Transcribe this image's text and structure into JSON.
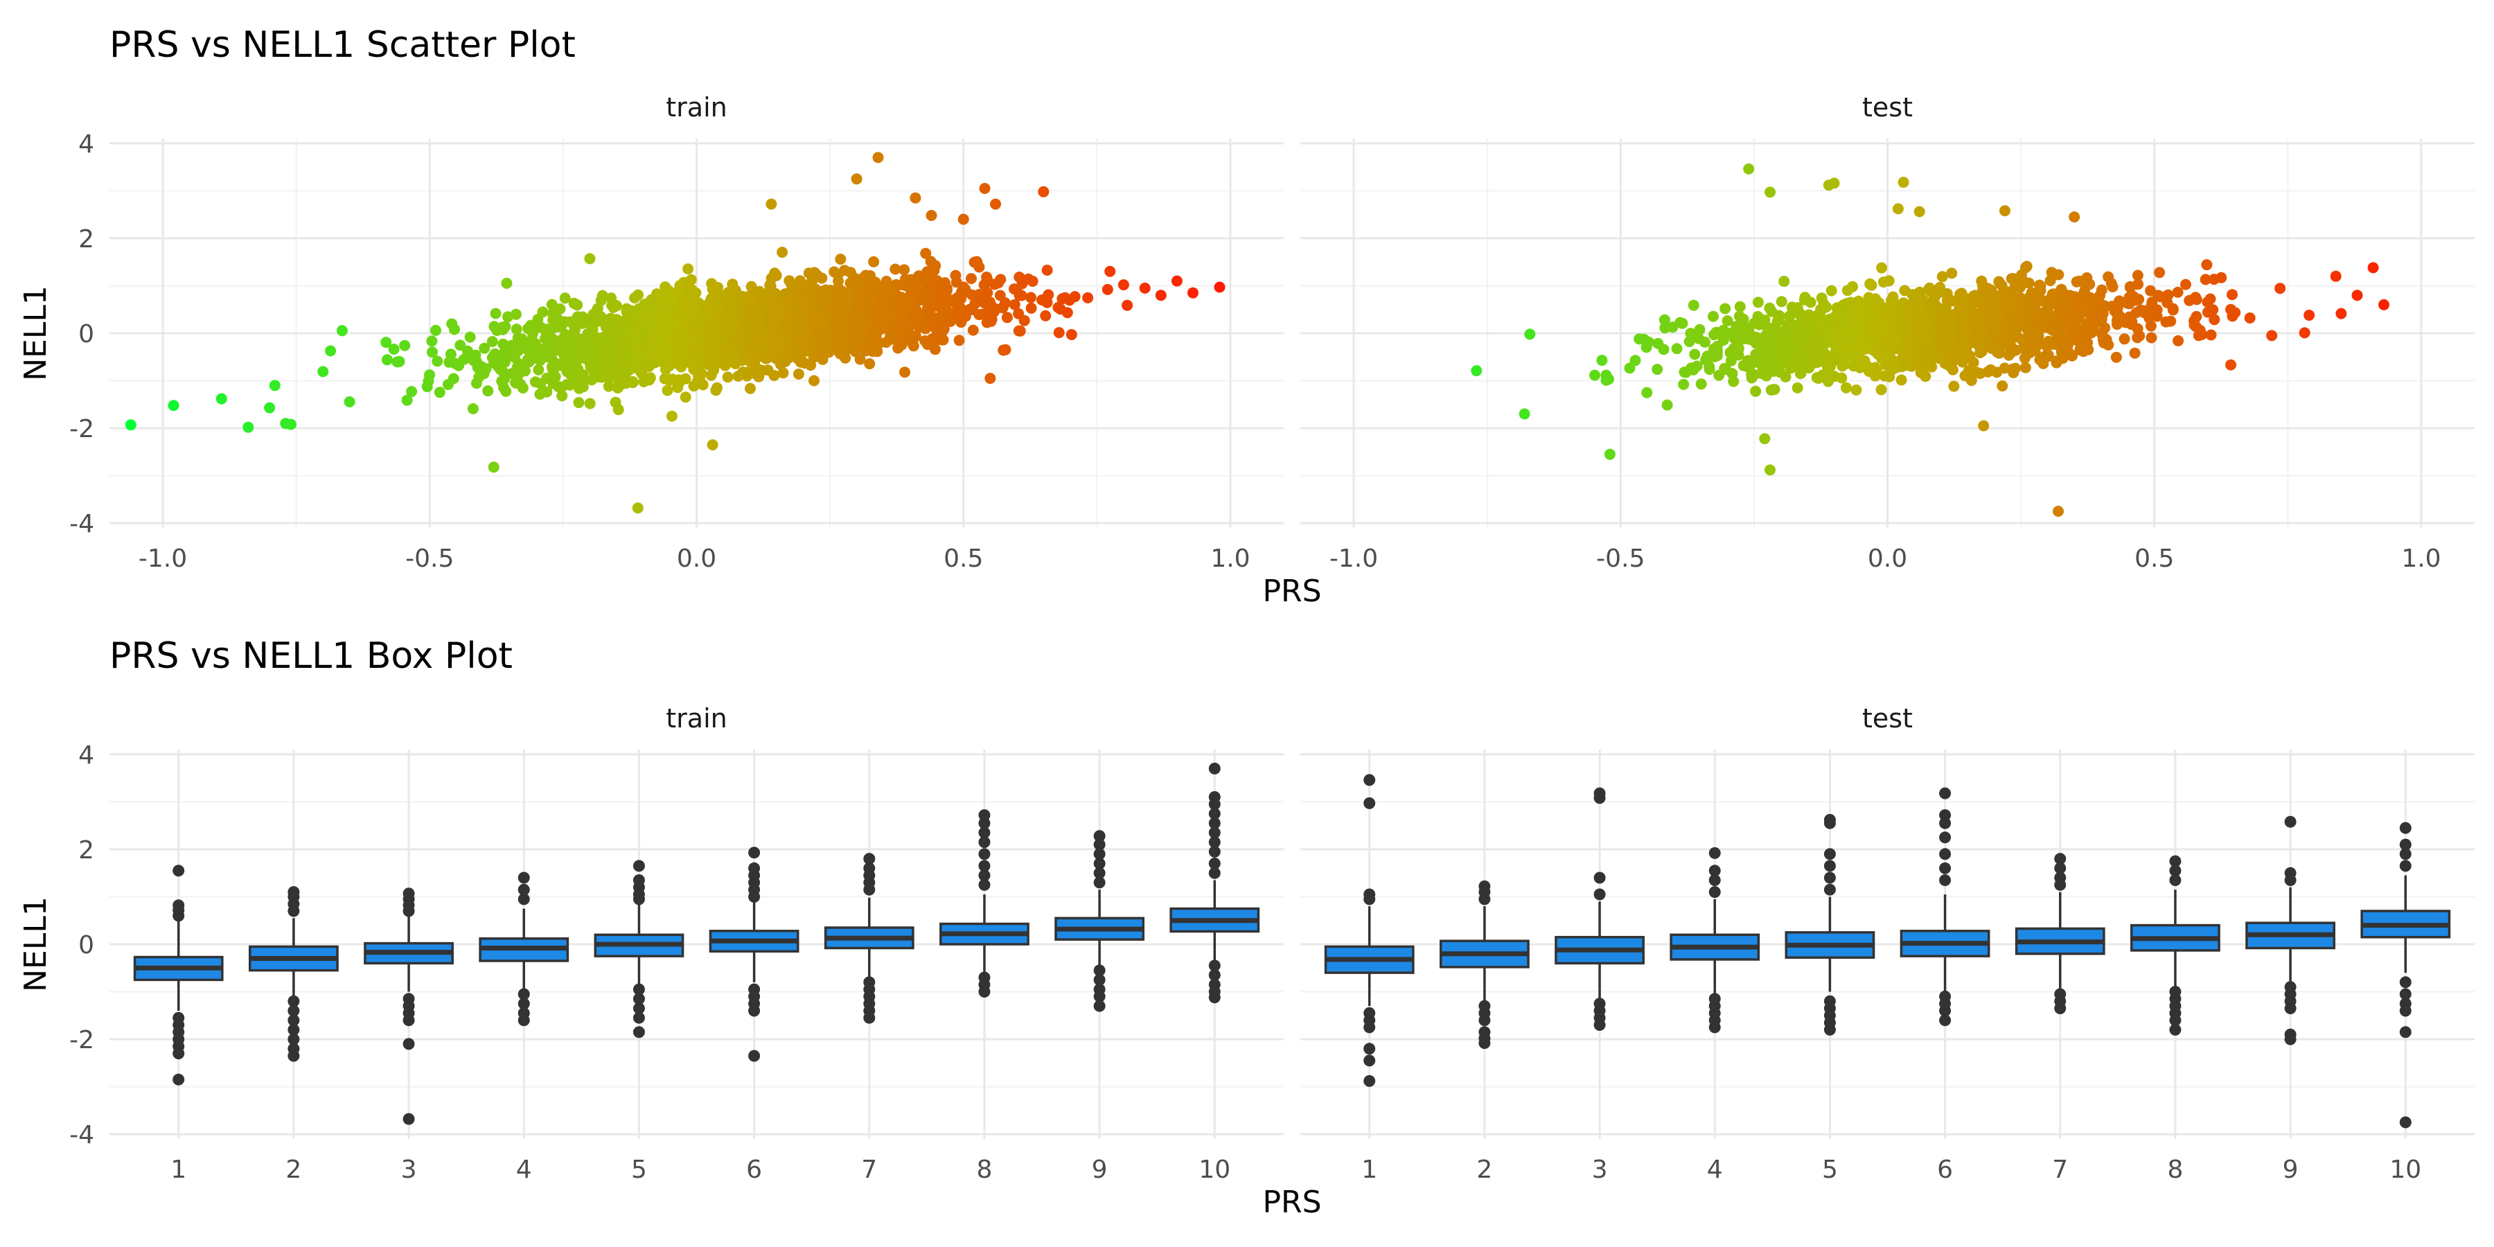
{
  "chart_data": [
    {
      "type": "scatter",
      "title": "PRS vs NELL1 Scatter Plot",
      "xlabel": "PRS",
      "ylabel": "NELL1",
      "xlim": [
        -1.1,
        1.1
      ],
      "ylim": [
        -4.1,
        4.1
      ],
      "x_ticks": [
        -1.0,
        -0.5,
        0.0,
        0.5,
        1.0
      ],
      "x_tick_labels": [
        "-1.0",
        "-0.5",
        "0.0",
        "0.5",
        "1.0"
      ],
      "y_ticks": [
        -4,
        -2,
        0,
        2,
        4
      ],
      "y_tick_labels": [
        "-4",
        "-2",
        "0",
        "2",
        "4"
      ],
      "grid": true,
      "color_scale": {
        "low": "#00ff33",
        "mid": "#b8b800",
        "high": "#ff1a00",
        "range": [
          -1.06,
          0.98
        ]
      },
      "bulk_relation": {
        "slope": 1.25,
        "sd_near_zero": 0.42
      },
      "panels": [
        {
          "name": "train",
          "x_range": [
            -0.7,
            0.9
          ],
          "outliers": [
            {
              "x": -1.06,
              "y": -1.93
            },
            {
              "x": -0.98,
              "y": -1.52
            },
            {
              "x": -0.89,
              "y": -1.38
            },
            {
              "x": -0.84,
              "y": -1.98
            },
            {
              "x": -0.8,
              "y": -1.57
            },
            {
              "x": -0.79,
              "y": -1.1
            },
            {
              "x": -0.77,
              "y": -1.9
            },
            {
              "x": -0.76,
              "y": -1.92
            },
            {
              "x": -0.38,
              "y": -2.82
            },
            {
              "x": -0.11,
              "y": -3.68
            },
            {
              "x": 0.03,
              "y": -2.35
            },
            {
              "x": -0.2,
              "y": 1.57
            },
            {
              "x": 0.34,
              "y": 3.7
            },
            {
              "x": 0.3,
              "y": 3.25
            },
            {
              "x": 0.41,
              "y": 2.85
            },
            {
              "x": 0.54,
              "y": 3.05
            },
            {
              "x": 0.65,
              "y": 2.98
            },
            {
              "x": 0.14,
              "y": 2.72
            },
            {
              "x": 0.5,
              "y": 2.4
            },
            {
              "x": 0.56,
              "y": 2.72
            },
            {
              "x": 0.44,
              "y": 2.48
            },
            {
              "x": 0.98,
              "y": 0.97
            },
            {
              "x": 0.93,
              "y": 0.85
            },
            {
              "x": 0.9,
              "y": 1.1
            },
            {
              "x": 0.87,
              "y": 0.8
            },
            {
              "x": 0.84,
              "y": 0.95
            },
            {
              "x": 0.8,
              "y": 1.02
            },
            {
              "x": 0.77,
              "y": 0.92
            },
            {
              "x": 0.55,
              "y": -0.95
            },
            {
              "x": 0.39,
              "y": -0.82
            }
          ]
        },
        {
          "name": "test",
          "x_range": [
            -0.6,
            0.85
          ],
          "outliers": [
            {
              "x": -0.77,
              "y": -0.79
            },
            {
              "x": -0.68,
              "y": -1.7
            },
            {
              "x": -0.67,
              "y": -0.02
            },
            {
              "x": -0.52,
              "y": -2.55
            },
            {
              "x": -0.26,
              "y": 3.46
            },
            {
              "x": -0.22,
              "y": 2.97
            },
            {
              "x": -0.11,
              "y": 3.12
            },
            {
              "x": -0.1,
              "y": 3.16
            },
            {
              "x": 0.03,
              "y": 3.18
            },
            {
              "x": 0.02,
              "y": 2.62
            },
            {
              "x": 0.06,
              "y": 2.56
            },
            {
              "x": 0.22,
              "y": 2.58
            },
            {
              "x": 0.35,
              "y": 2.45
            },
            {
              "x": -0.22,
              "y": -2.88
            },
            {
              "x": -0.23,
              "y": -2.22
            },
            {
              "x": 0.32,
              "y": -3.75
            },
            {
              "x": 0.18,
              "y": -1.95
            },
            {
              "x": 0.93,
              "y": 0.6
            },
            {
              "x": 0.91,
              "y": 1.38
            },
            {
              "x": 0.88,
              "y": 0.8
            },
            {
              "x": 0.84,
              "y": 1.2
            },
            {
              "x": 0.79,
              "y": 0.38
            },
            {
              "x": 0.72,
              "y": -0.05
            }
          ]
        }
      ]
    },
    {
      "type": "box",
      "title": "PRS vs NELL1 Box Plot",
      "xlabel": "PRS",
      "ylabel": "NELL1",
      "categories": [
        "1",
        "2",
        "3",
        "4",
        "5",
        "6",
        "7",
        "8",
        "9",
        "10"
      ],
      "ylim": [
        -4.1,
        4.1
      ],
      "y_ticks": [
        -4,
        -2,
        0,
        2,
        4
      ],
      "y_tick_labels": [
        "-4",
        "-2",
        "0",
        "2",
        "4"
      ],
      "box_color": "#1e88e5",
      "grid": true,
      "panels": [
        {
          "name": "train",
          "boxes": [
            {
              "cat": "1",
              "q1": -0.75,
              "median": -0.5,
              "q3": -0.27,
              "lower": -1.4,
              "upper": 0.5,
              "outliers": [
                1.55,
                0.82,
                0.72,
                0.6,
                -1.55,
                -1.7,
                -1.85,
                -2.0,
                -2.15,
                -2.3,
                -2.85
              ]
            },
            {
              "cat": "2",
              "q1": -0.55,
              "median": -0.3,
              "q3": -0.05,
              "lower": -1.1,
              "upper": 0.55,
              "outliers": [
                1.1,
                1.0,
                0.85,
                0.7,
                -1.2,
                -1.4,
                -1.6,
                -1.8,
                -2.0,
                -2.2,
                -2.35
              ]
            },
            {
              "cat": "3",
              "q1": -0.4,
              "median": -0.17,
              "q3": 0.02,
              "lower": -1.0,
              "upper": 0.6,
              "outliers": [
                1.07,
                0.95,
                0.82,
                0.7,
                -1.15,
                -1.3,
                -1.45,
                -1.6,
                -2.1,
                -3.68
              ]
            },
            {
              "cat": "4",
              "q1": -0.35,
              "median": -0.08,
              "q3": 0.12,
              "lower": -0.95,
              "upper": 0.75,
              "outliers": [
                1.4,
                1.15,
                0.95,
                -1.05,
                -1.25,
                -1.45,
                -1.6
              ]
            },
            {
              "cat": "5",
              "q1": -0.25,
              "median": 0.0,
              "q3": 0.2,
              "lower": -0.85,
              "upper": 0.85,
              "outliers": [
                1.65,
                1.35,
                1.2,
                1.05,
                0.95,
                -0.95,
                -1.15,
                -1.35,
                -1.55,
                -1.85
              ]
            },
            {
              "cat": "6",
              "q1": -0.15,
              "median": 0.07,
              "q3": 0.28,
              "lower": -0.8,
              "upper": 0.9,
              "outliers": [
                1.93,
                1.6,
                1.45,
                1.3,
                1.15,
                1.0,
                -0.95,
                -1.1,
                -1.25,
                -1.4,
                -2.35
              ]
            },
            {
              "cat": "7",
              "q1": -0.08,
              "median": 0.13,
              "q3": 0.35,
              "lower": -0.7,
              "upper": 0.98,
              "outliers": [
                1.8,
                1.6,
                1.45,
                1.3,
                1.15,
                -0.8,
                -0.95,
                -1.1,
                -1.25,
                -1.4,
                -1.55
              ]
            },
            {
              "cat": "8",
              "q1": 0.0,
              "median": 0.22,
              "q3": 0.43,
              "lower": -0.6,
              "upper": 1.05,
              "outliers": [
                2.72,
                2.55,
                2.35,
                2.15,
                1.9,
                1.65,
                1.45,
                1.25,
                -0.7,
                -0.85,
                -1.0
              ]
            },
            {
              "cat": "9",
              "q1": 0.1,
              "median": 0.32,
              "q3": 0.55,
              "lower": -0.45,
              "upper": 1.15,
              "outliers": [
                2.28,
                2.1,
                1.9,
                1.7,
                1.5,
                1.3,
                -0.55,
                -0.75,
                -0.95,
                -1.1,
                -1.3
              ]
            },
            {
              "cat": "10",
              "q1": 0.27,
              "median": 0.5,
              "q3": 0.75,
              "lower": -0.35,
              "upper": 1.35,
              "outliers": [
                3.7,
                3.1,
                2.95,
                2.75,
                2.55,
                2.35,
                2.15,
                1.95,
                1.7,
                1.5,
                -0.45,
                -0.65,
                -0.85,
                -1.0,
                -1.12
              ]
            }
          ]
        },
        {
          "name": "test",
          "boxes": [
            {
              "cat": "1",
              "q1": -0.6,
              "median": -0.32,
              "q3": -0.05,
              "lower": -1.3,
              "upper": 0.8,
              "outliers": [
                3.46,
                2.97,
                1.05,
                0.95,
                -1.45,
                -1.6,
                -1.75,
                -2.2,
                -2.45,
                -2.88
              ]
            },
            {
              "cat": "2",
              "q1": -0.48,
              "median": -0.2,
              "q3": 0.07,
              "lower": -1.2,
              "upper": 0.8,
              "outliers": [
                1.22,
                1.1,
                0.95,
                -1.3,
                -1.45,
                -1.6,
                -1.85,
                -1.98,
                -2.08
              ]
            },
            {
              "cat": "3",
              "q1": -0.4,
              "median": -0.12,
              "q3": 0.15,
              "lower": -1.15,
              "upper": 0.9,
              "outliers": [
                3.18,
                3.08,
                1.4,
                1.05,
                -1.25,
                -1.4,
                -1.55,
                -1.7
              ]
            },
            {
              "cat": "4",
              "q1": -0.32,
              "median": -0.06,
              "q3": 0.2,
              "lower": -1.05,
              "upper": 0.95,
              "outliers": [
                1.92,
                1.55,
                1.35,
                1.1,
                -1.15,
                -1.3,
                -1.45,
                -1.6,
                -1.75
              ]
            },
            {
              "cat": "5",
              "q1": -0.28,
              "median": -0.02,
              "q3": 0.25,
              "lower": -1.0,
              "upper": 1.0,
              "outliers": [
                2.62,
                2.55,
                1.9,
                1.65,
                1.4,
                1.15,
                -1.2,
                -1.35,
                -1.5,
                -1.65,
                -1.8
              ]
            },
            {
              "cat": "6",
              "q1": -0.25,
              "median": 0.02,
              "q3": 0.28,
              "lower": -1.0,
              "upper": 1.05,
              "outliers": [
                3.18,
                2.72,
                2.55,
                2.25,
                1.9,
                1.6,
                1.35,
                -1.1,
                -1.25,
                -1.4,
                -1.6
              ]
            },
            {
              "cat": "7",
              "q1": -0.2,
              "median": 0.05,
              "q3": 0.33,
              "lower": -0.95,
              "upper": 1.1,
              "outliers": [
                1.8,
                1.6,
                1.4,
                1.25,
                -1.05,
                -1.2,
                -1.35
              ]
            },
            {
              "cat": "8",
              "q1": -0.13,
              "median": 0.12,
              "q3": 0.4,
              "lower": -0.9,
              "upper": 1.15,
              "outliers": [
                1.75,
                1.55,
                1.35,
                -1.0,
                -1.15,
                -1.3,
                -1.45,
                -1.6,
                -1.8
              ]
            },
            {
              "cat": "9",
              "q1": -0.08,
              "median": 0.2,
              "q3": 0.45,
              "lower": -0.8,
              "upper": 1.2,
              "outliers": [
                2.58,
                1.5,
                1.35,
                -0.9,
                -1.05,
                -1.2,
                -1.35,
                -1.9,
                -2.0
              ]
            },
            {
              "cat": "10",
              "q1": 0.15,
              "median": 0.4,
              "q3": 0.7,
              "lower": -0.6,
              "upper": 1.45,
              "outliers": [
                2.45,
                2.1,
                1.9,
                1.65,
                -0.8,
                -1.05,
                -1.25,
                -1.4,
                -1.85,
                -3.75
              ]
            }
          ]
        }
      ]
    }
  ]
}
